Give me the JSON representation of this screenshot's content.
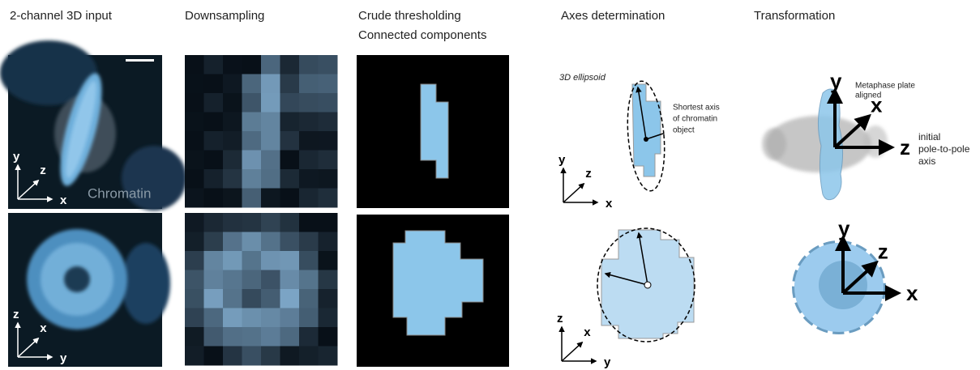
{
  "headers": [
    [
      "2-channel 3D input"
    ],
    [
      "Downsampling"
    ],
    [
      "Crude thresholding",
      "Connected components"
    ],
    [
      "Axes determination"
    ],
    [
      "Transformation"
    ]
  ],
  "input": {
    "channel_label": "Chromatin",
    "top_axes": {
      "up": "y",
      "diag": "z",
      "right": "x"
    },
    "bottom_axes": {
      "up": "z",
      "diag": "x",
      "right": "y"
    }
  },
  "axes_determination": {
    "ellipsoid_label": "3D ellipsoid",
    "shortest_axis_label": [
      "Shortest axis",
      "of chromatin",
      "object"
    ],
    "top_axes": {
      "up": "y",
      "diag": "z",
      "right": "x"
    },
    "bottom_axes": {
      "up": "z",
      "diag": "x",
      "right": "y"
    }
  },
  "transformation": {
    "plate_label": [
      "Metaphase plate",
      "aligned"
    ],
    "pole_label": [
      "initial",
      "pole-to-pole",
      "axis"
    ],
    "top_axes": {
      "up": "y",
      "diag": "x",
      "right": "z"
    },
    "bottom_axes": {
      "up": "y",
      "diag": "z",
      "right": "x"
    }
  }
}
